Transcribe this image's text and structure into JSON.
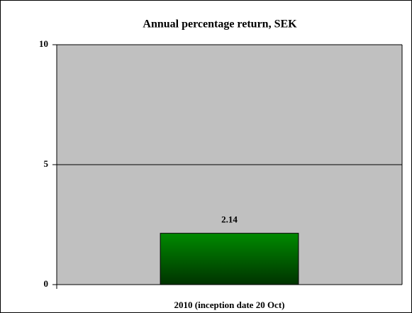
{
  "chart_data": {
    "type": "bar",
    "title": "Annual percentage return, SEK",
    "categories": [
      "2010 (inception date 20 Oct)"
    ],
    "values": [
      2.14
    ],
    "color": "#008a00",
    "ylim": [
      0,
      10
    ],
    "yticks": [
      0,
      5,
      10
    ],
    "grid": true
  }
}
